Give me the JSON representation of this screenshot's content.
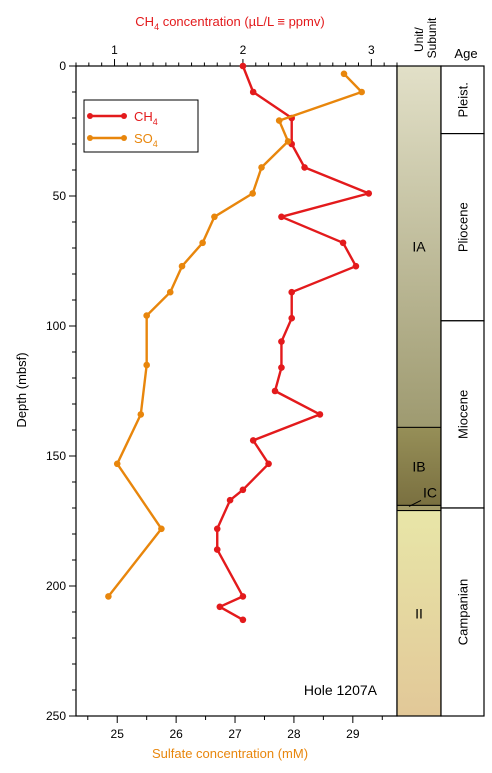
{
  "chart_data": {
    "type": "line",
    "top_axis": {
      "label_parts": [
        "CH",
        "4",
        " concentration (µL/L ≡ ppmv)"
      ],
      "range": [
        0.7,
        3.2
      ],
      "ticks": [
        1,
        2,
        3
      ],
      "color": "#e31a1c"
    },
    "bottom_axis": {
      "label": "Sulfate concentration (mM)",
      "range": [
        24.3,
        29.75
      ],
      "ticks": [
        25,
        26,
        27,
        28,
        29
      ],
      "color": "#e8860c"
    },
    "y_axis": {
      "label": "Depth (mbsf)",
      "range": [
        0,
        250
      ],
      "ticks": [
        0,
        50,
        100,
        150,
        200,
        250
      ],
      "inverted": true
    },
    "series": [
      {
        "name_parts": [
          "CH",
          "4"
        ],
        "axis": "top",
        "color": "#e31a1c",
        "points": [
          {
            "x": 2.0,
            "y": 0
          },
          {
            "x": 2.08,
            "y": 10
          },
          {
            "x": 2.38,
            "y": 20
          },
          {
            "x": 2.38,
            "y": 30
          },
          {
            "x": 2.48,
            "y": 39
          },
          {
            "x": 2.98,
            "y": 49
          },
          {
            "x": 2.3,
            "y": 58
          },
          {
            "x": 2.78,
            "y": 68
          },
          {
            "x": 2.88,
            "y": 77
          },
          {
            "x": 2.38,
            "y": 87
          },
          {
            "x": 2.38,
            "y": 97
          },
          {
            "x": 2.3,
            "y": 106
          },
          {
            "x": 2.3,
            "y": 116
          },
          {
            "x": 2.25,
            "y": 125
          },
          {
            "x": 2.6,
            "y": 134
          },
          {
            "x": 2.08,
            "y": 144
          },
          {
            "x": 2.2,
            "y": 153
          },
          {
            "x": 2.0,
            "y": 163
          },
          {
            "x": 1.9,
            "y": 167
          },
          {
            "x": 1.8,
            "y": 178
          },
          {
            "x": 1.8,
            "y": 186
          },
          {
            "x": 2.0,
            "y": 204
          },
          {
            "x": 1.82,
            "y": 208
          },
          {
            "x": 2.0,
            "y": 213
          }
        ]
      },
      {
        "name_parts": [
          "SO",
          "4"
        ],
        "axis": "bottom",
        "color": "#e8860c",
        "points": [
          {
            "x": 28.85,
            "y": 3
          },
          {
            "x": 29.15,
            "y": 10
          },
          {
            "x": 27.75,
            "y": 21
          },
          {
            "x": 27.9,
            "y": 29
          },
          {
            "x": 27.45,
            "y": 39
          },
          {
            "x": 27.3,
            "y": 49
          },
          {
            "x": 26.65,
            "y": 58
          },
          {
            "x": 26.45,
            "y": 68
          },
          {
            "x": 26.1,
            "y": 77
          },
          {
            "x": 25.9,
            "y": 87
          },
          {
            "x": 25.5,
            "y": 96
          },
          {
            "x": 25.5,
            "y": 115
          },
          {
            "x": 25.4,
            "y": 134
          },
          {
            "x": 25.0,
            "y": 153
          },
          {
            "x": 25.75,
            "y": 178
          },
          {
            "x": 24.85,
            "y": 204
          }
        ]
      }
    ],
    "legend": "top-left",
    "annotation": "Hole 1207A",
    "units_column": {
      "header": [
        "Unit/",
        "Subunit"
      ],
      "units": [
        {
          "label": "IA",
          "top": 0,
          "bottom": 139,
          "colors": [
            "#e2e0c8",
            "#9e9a70"
          ]
        },
        {
          "label": "IB",
          "top": 139,
          "bottom": 169,
          "colors": [
            "#968f58",
            "#7a7040"
          ]
        },
        {
          "label": "IC",
          "top": 169,
          "bottom": 171,
          "colors": [
            "#a69e6a",
            "#a69e6a"
          ]
        },
        {
          "label": "II",
          "top": 171,
          "bottom": 250,
          "colors": [
            "#e8e6a8",
            "#e2c898"
          ]
        }
      ]
    },
    "age_column": {
      "header": "Age",
      "ages": [
        {
          "label": "Pleist.",
          "top": 0,
          "bottom": 26
        },
        {
          "label": "Pliocene",
          "top": 26,
          "bottom": 98
        },
        {
          "label": "Miocene",
          "top": 98,
          "bottom": 170
        },
        {
          "label": "Campanian",
          "top": 170,
          "bottom": 250
        }
      ]
    }
  }
}
